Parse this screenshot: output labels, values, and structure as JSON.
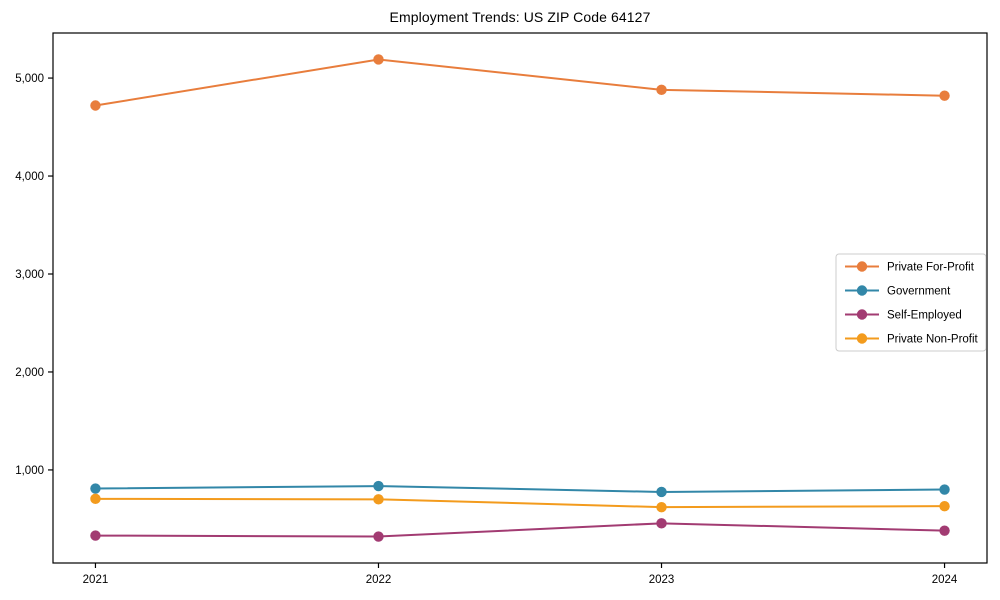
{
  "chart_data": {
    "type": "line",
    "title": "Employment Trends: US ZIP Code 64127",
    "categories": [
      "2021",
      "2022",
      "2023",
      "2024"
    ],
    "series": [
      {
        "name": "Private For-Profit",
        "color": "#e87d3c",
        "values": [
          4720,
          5190,
          4880,
          4820
        ]
      },
      {
        "name": "Government",
        "color": "#3287a8",
        "values": [
          810,
          835,
          775,
          800
        ]
      },
      {
        "name": "Self-Employed",
        "color": "#a23b72",
        "values": [
          330,
          320,
          455,
          380
        ]
      },
      {
        "name": "Private Non-Profit",
        "color": "#f39b1d",
        "values": [
          705,
          700,
          620,
          630
        ]
      }
    ],
    "xlabel": "",
    "ylabel": "",
    "ylim": [
      50,
      5460
    ],
    "yticks": [
      1000,
      2000,
      3000,
      4000,
      5000
    ],
    "ytick_labels": [
      "1,000",
      "2,000",
      "3,000",
      "4,000",
      "5,000"
    ],
    "grid": false,
    "legend_position": "center right",
    "axis_color": "#000000",
    "legend_border_color": "#cccccc",
    "background_color": "#ffffff"
  }
}
